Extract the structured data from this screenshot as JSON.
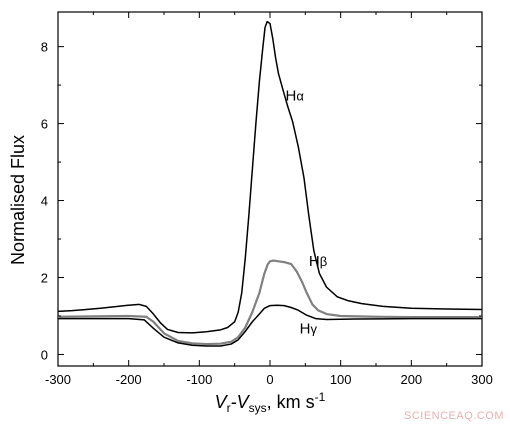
{
  "chart_data": {
    "type": "line",
    "xlabel": {
      "v": "V",
      "r": "r",
      "dash": "-V",
      "sys": "sys",
      "units": ", km s",
      "exp": "-1"
    },
    "ylabel": "Normalised Flux",
    "xlim": [
      -300,
      300
    ],
    "ylim": [
      -0.3,
      8.9
    ],
    "x_ticks": [
      -300,
      -200,
      -100,
      0,
      100,
      200,
      300
    ],
    "y_ticks": [
      0,
      2,
      4,
      6,
      8
    ],
    "series": [
      {
        "name": "Hα",
        "label_parts": [
          "H",
          "α"
        ],
        "color": "#000000",
        "points": [
          [
            -300,
            1.12
          ],
          [
            -280,
            1.14
          ],
          [
            -260,
            1.17
          ],
          [
            -240,
            1.2
          ],
          [
            -220,
            1.24
          ],
          [
            -200,
            1.28
          ],
          [
            -185,
            1.3
          ],
          [
            -175,
            1.25
          ],
          [
            -165,
            1.05
          ],
          [
            -155,
            0.82
          ],
          [
            -145,
            0.65
          ],
          [
            -130,
            0.57
          ],
          [
            -110,
            0.56
          ],
          [
            -90,
            0.59
          ],
          [
            -70,
            0.64
          ],
          [
            -60,
            0.7
          ],
          [
            -50,
            0.85
          ],
          [
            -45,
            1.1
          ],
          [
            -40,
            1.6
          ],
          [
            -35,
            2.5
          ],
          [
            -30,
            3.6
          ],
          [
            -25,
            4.8
          ],
          [
            -20,
            6.0
          ],
          [
            -15,
            7.1
          ],
          [
            -10,
            8.0
          ],
          [
            -7,
            8.5
          ],
          [
            -4,
            8.65
          ],
          [
            0,
            8.6
          ],
          [
            4,
            8.2
          ],
          [
            8,
            7.7
          ],
          [
            12,
            7.3
          ],
          [
            18,
            6.9
          ],
          [
            25,
            6.45
          ],
          [
            32,
            6.05
          ],
          [
            40,
            5.4
          ],
          [
            48,
            4.6
          ],
          [
            55,
            3.6
          ],
          [
            62,
            2.7
          ],
          [
            70,
            2.1
          ],
          [
            80,
            1.75
          ],
          [
            95,
            1.5
          ],
          [
            110,
            1.4
          ],
          [
            130,
            1.32
          ],
          [
            160,
            1.25
          ],
          [
            200,
            1.2
          ],
          [
            250,
            1.18
          ],
          [
            300,
            1.17
          ]
        ]
      },
      {
        "name": "Hβ",
        "label_parts": [
          "H",
          "β"
        ],
        "color": "#808080",
        "points": [
          [
            -300,
            0.98
          ],
          [
            -250,
            0.99
          ],
          [
            -200,
            1.0
          ],
          [
            -175,
            0.98
          ],
          [
            -165,
            0.85
          ],
          [
            -150,
            0.55
          ],
          [
            -130,
            0.35
          ],
          [
            -110,
            0.29
          ],
          [
            -90,
            0.27
          ],
          [
            -70,
            0.28
          ],
          [
            -55,
            0.33
          ],
          [
            -45,
            0.45
          ],
          [
            -35,
            0.7
          ],
          [
            -25,
            1.1
          ],
          [
            -15,
            1.6
          ],
          [
            -8,
            2.1
          ],
          [
            -3,
            2.35
          ],
          [
            0,
            2.42
          ],
          [
            5,
            2.44
          ],
          [
            12,
            2.42
          ],
          [
            20,
            2.4
          ],
          [
            30,
            2.35
          ],
          [
            38,
            2.15
          ],
          [
            45,
            1.9
          ],
          [
            52,
            1.6
          ],
          [
            60,
            1.3
          ],
          [
            68,
            1.15
          ],
          [
            80,
            1.05
          ],
          [
            100,
            1.0
          ],
          [
            150,
            0.98
          ],
          [
            200,
            0.97
          ],
          [
            250,
            0.97
          ],
          [
            300,
            0.97
          ]
        ]
      },
      {
        "name": "Hγ",
        "label_parts": [
          "H",
          "γ"
        ],
        "color": "#000000",
        "points": [
          [
            -300,
            0.93
          ],
          [
            -250,
            0.93
          ],
          [
            -200,
            0.93
          ],
          [
            -178,
            0.9
          ],
          [
            -165,
            0.68
          ],
          [
            -150,
            0.45
          ],
          [
            -130,
            0.3
          ],
          [
            -110,
            0.24
          ],
          [
            -90,
            0.22
          ],
          [
            -70,
            0.22
          ],
          [
            -55,
            0.27
          ],
          [
            -45,
            0.38
          ],
          [
            -35,
            0.6
          ],
          [
            -25,
            0.85
          ],
          [
            -15,
            1.05
          ],
          [
            -8,
            1.2
          ],
          [
            0,
            1.27
          ],
          [
            10,
            1.28
          ],
          [
            20,
            1.27
          ],
          [
            30,
            1.22
          ],
          [
            40,
            1.15
          ],
          [
            52,
            1.02
          ],
          [
            65,
            0.93
          ],
          [
            80,
            0.91
          ],
          [
            120,
            0.92
          ],
          [
            200,
            0.93
          ],
          [
            250,
            0.93
          ],
          [
            300,
            0.93
          ]
        ]
      }
    ]
  },
  "watermark": "SCIENCEAQ.COM"
}
